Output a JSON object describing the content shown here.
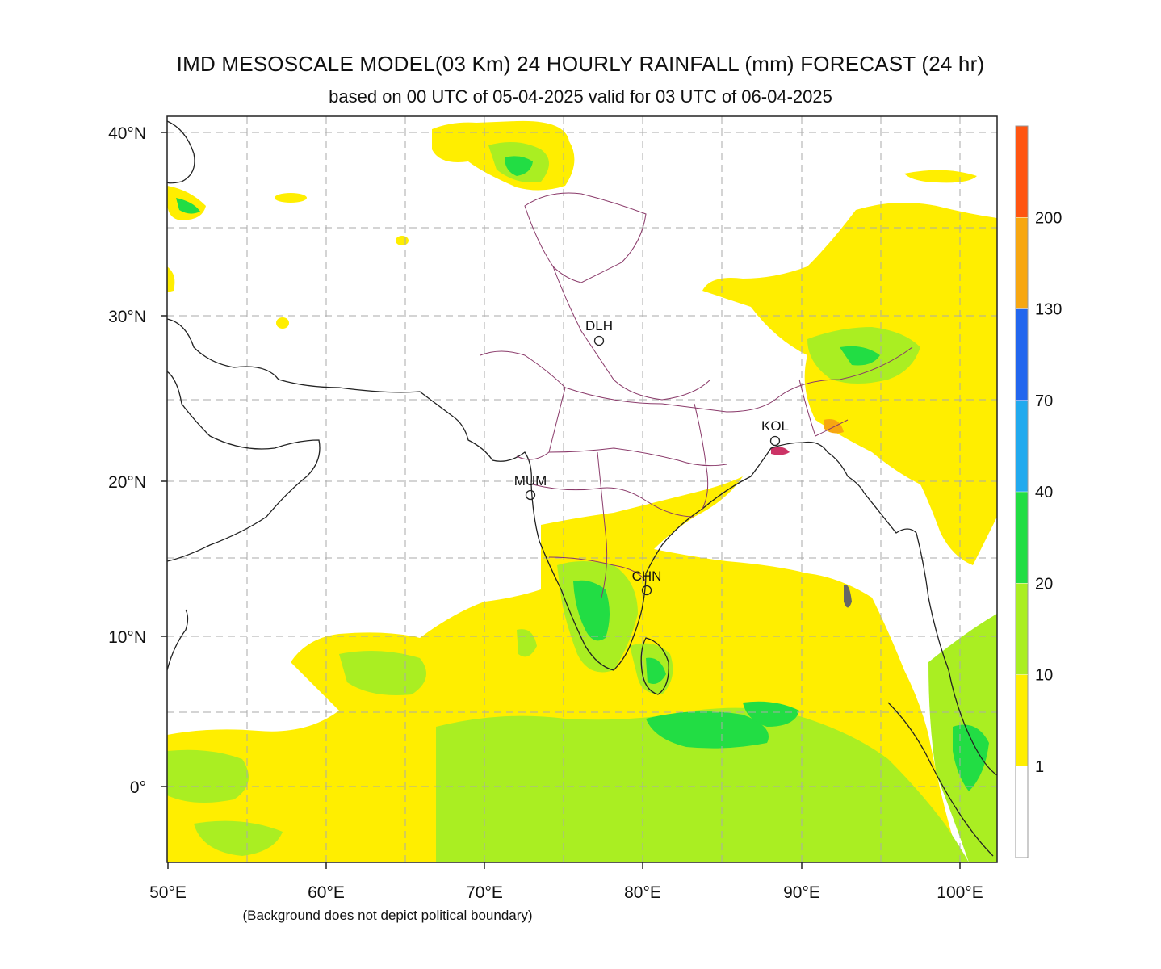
{
  "title": "IMD MESOSCALE MODEL(03 Km) 24 HOURLY RAINFALL (mm) FORECAST  (24 hr)",
  "subtitle": "based on 00 UTC of 05-04-2025 valid for 03 UTC of 06-04-2025",
  "footnote": "(Background does not depict political boundary)",
  "axes": {
    "lat_ticks": [
      "40°N",
      "30°N",
      "20°N",
      "10°N",
      "0°"
    ],
    "lon_ticks": [
      "50°E",
      "60°E",
      "70°E",
      "80°E",
      "90°E",
      "100°E"
    ]
  },
  "colorbar": {
    "labels": [
      "1",
      "10",
      "20",
      "40",
      "70",
      "130",
      "200"
    ],
    "colors": [
      "#ffffff",
      "#ffee00",
      "#aaee22",
      "#22dd44",
      "#22aaee",
      "#2266ee",
      "#f7a711",
      "#ff5511"
    ]
  },
  "cities": [
    {
      "label": "DLH"
    },
    {
      "label": "KOL"
    },
    {
      "label": "MUM"
    },
    {
      "label": "CHN"
    }
  ]
}
